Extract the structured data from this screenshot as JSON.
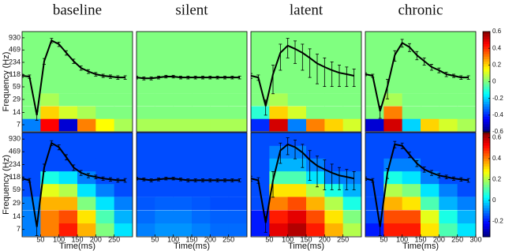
{
  "chart_data": [
    {
      "type": "heatmap",
      "title": "baseline",
      "ylabel": "Frequency (Hz)",
      "ylim": [
        4.7,
        1320
      ],
      "log_y": true,
      "yticks": [
        7,
        14,
        29,
        59,
        118,
        234,
        469,
        930
      ],
      "xlim": [
        0,
        300
      ],
      "x": [
        0,
        20,
        40,
        60,
        80,
        100,
        120,
        140,
        160,
        180,
        200,
        220,
        240,
        260,
        280
      ],
      "values": [
        110,
        105,
        12,
        250,
        800,
        650,
        400,
        250,
        170,
        140,
        120,
        110,
        105,
        100,
        100
      ],
      "errors": [
        10,
        10,
        3,
        40,
        100,
        80,
        50,
        30,
        20,
        15,
        12,
        10,
        10,
        10,
        10
      ],
      "color": "#000000",
      "z_time_bins": [
        0,
        50,
        100,
        150,
        200,
        250,
        300
      ],
      "z_freqs": [
        7,
        14,
        29,
        59,
        118,
        234,
        469,
        930
      ],
      "zlim": [
        -0.6,
        0.6
      ],
      "z": [
        [
          -0.3,
          0.45,
          -0.5,
          0.3,
          0.15,
          0.05
        ],
        [
          0,
          0.2,
          0.1,
          0.05,
          0,
          0
        ],
        [
          0,
          0.05,
          0,
          0,
          0,
          0
        ],
        [
          0,
          0,
          0,
          0,
          0,
          0
        ],
        [
          0,
          0,
          0,
          0,
          0,
          0
        ],
        [
          0,
          0,
          0,
          0,
          0,
          0
        ],
        [
          0,
          0,
          0,
          0,
          0,
          0
        ],
        [
          0,
          0,
          0,
          0,
          0,
          0
        ]
      ]
    },
    {
      "type": "heatmap",
      "title": "silent",
      "ylim": [
        4.7,
        1320
      ],
      "log_y": true,
      "xlim": [
        0,
        300
      ],
      "x": [
        0,
        20,
        40,
        60,
        80,
        100,
        120,
        140,
        160,
        180,
        200,
        220,
        240,
        260,
        280
      ],
      "values": [
        100,
        95,
        95,
        100,
        105,
        105,
        100,
        100,
        100,
        100,
        100,
        100,
        100,
        100,
        100
      ],
      "errors": [
        8,
        8,
        8,
        8,
        8,
        8,
        8,
        8,
        8,
        8,
        8,
        8,
        8,
        8,
        8
      ],
      "color": "#000000",
      "z_time_bins": [
        0,
        50,
        100,
        150,
        200,
        250,
        300
      ],
      "z_freqs": [
        7,
        14,
        29,
        59,
        118,
        234,
        469,
        930
      ],
      "zlim": [
        -0.6,
        0.6
      ],
      "z": [
        [
          0.05,
          0.05,
          0.05,
          0.05,
          0.05,
          0.05
        ],
        [
          0,
          0,
          0,
          0,
          0,
          0
        ],
        [
          0,
          0,
          0,
          0,
          0,
          0
        ],
        [
          0,
          0,
          0,
          0,
          0,
          0
        ],
        [
          0,
          0,
          0,
          0,
          0,
          0
        ],
        [
          0,
          0,
          0,
          0,
          0,
          0
        ],
        [
          0,
          0,
          0,
          0,
          0,
          0
        ],
        [
          0,
          0,
          0,
          0,
          0,
          0
        ]
      ]
    },
    {
      "type": "heatmap",
      "title": "latent",
      "ylim": [
        4.7,
        1320
      ],
      "log_y": true,
      "xlim": [
        0,
        300
      ],
      "x": [
        0,
        20,
        40,
        60,
        80,
        100,
        120,
        140,
        160,
        180,
        200,
        220,
        240,
        260,
        280
      ],
      "values": [
        110,
        100,
        20,
        120,
        400,
        600,
        500,
        400,
        300,
        220,
        180,
        150,
        130,
        120,
        110
      ],
      "errors": [
        15,
        15,
        8,
        80,
        250,
        300,
        280,
        250,
        200,
        150,
        120,
        90,
        70,
        60,
        50
      ],
      "color": "#000000",
      "z_time_bins": [
        0,
        50,
        100,
        150,
        200,
        250,
        300
      ],
      "z_freqs": [
        7,
        14,
        29,
        59,
        118,
        234,
        469,
        930
      ],
      "zlim": [
        -0.6,
        0.6
      ],
      "z": [
        [
          -0.4,
          0.5,
          -0.3,
          0.3,
          0.2,
          0.1
        ],
        [
          -0.1,
          0.2,
          0.1,
          0,
          0,
          0
        ],
        [
          0,
          0.05,
          0,
          0,
          0,
          0
        ],
        [
          0,
          0,
          0,
          0,
          0,
          0
        ],
        [
          0,
          0,
          0,
          0,
          0,
          0
        ],
        [
          0,
          0,
          0,
          0,
          0,
          0
        ],
        [
          0,
          0,
          0,
          0,
          0,
          0
        ],
        [
          0,
          0,
          0,
          0,
          0,
          0
        ]
      ]
    },
    {
      "type": "heatmap",
      "title": "chronic",
      "ylim": [
        4.7,
        1320
      ],
      "log_y": true,
      "xlim": [
        0,
        300
      ],
      "x": [
        0,
        20,
        40,
        60,
        80,
        100,
        120,
        140,
        160,
        180,
        200,
        220,
        240,
        260,
        280
      ],
      "values": [
        120,
        110,
        15,
        60,
        350,
        700,
        550,
        350,
        250,
        180,
        150,
        120,
        110,
        100,
        100
      ],
      "errors": [
        10,
        10,
        5,
        30,
        100,
        150,
        120,
        80,
        50,
        30,
        20,
        15,
        10,
        10,
        10
      ],
      "color": "#000000",
      "z_time_bins": [
        0,
        50,
        100,
        150,
        200,
        250,
        300
      ],
      "z_freqs": [
        7,
        14,
        29,
        59,
        118,
        234,
        469,
        930
      ],
      "zlim": [
        -0.6,
        0.6
      ],
      "zticks": [
        0.6,
        0.4,
        0.2,
        0,
        -0.2,
        -0.4,
        -0.6
      ],
      "z": [
        [
          -0.5,
          0.5,
          -0.2,
          0.2,
          0.1,
          0.05
        ],
        [
          0,
          0.3,
          0,
          0,
          0,
          0
        ],
        [
          0,
          0.05,
          0,
          0,
          0,
          0
        ],
        [
          0,
          0,
          0,
          0,
          0,
          0
        ],
        [
          0,
          0,
          0,
          0,
          0,
          0
        ],
        [
          0,
          0,
          0,
          0,
          0,
          0
        ],
        [
          0,
          0,
          0,
          0,
          0,
          0
        ],
        [
          0,
          0,
          0,
          0,
          0,
          0
        ]
      ]
    },
    {
      "type": "heatmap",
      "ylabel": "Frequency (Hz)",
      "xlabel": "Time(ms)",
      "ylim": [
        4.7,
        1320
      ],
      "log_y": true,
      "yticks": [
        7,
        14,
        29,
        59,
        118,
        234,
        469,
        930
      ],
      "xlim": [
        0,
        300
      ],
      "xticks": [
        50,
        100,
        150,
        200,
        250
      ],
      "x": [
        0,
        20,
        40,
        60,
        80,
        100,
        120,
        140,
        160,
        180,
        200,
        220,
        240,
        260,
        280
      ],
      "values": [
        110,
        100,
        8,
        200,
        750,
        600,
        350,
        200,
        150,
        130,
        120,
        110,
        105,
        100,
        100
      ],
      "errors": [
        10,
        10,
        3,
        40,
        100,
        80,
        50,
        30,
        20,
        15,
        12,
        10,
        10,
        10,
        10
      ],
      "color": "#000000",
      "z_time_bins": [
        0,
        50,
        100,
        150,
        200,
        250,
        300
      ],
      "z_freqs": [
        7,
        14,
        29,
        59,
        118,
        234,
        469,
        930
      ],
      "zlim": [
        -0.35,
        0.65
      ],
      "z": [
        [
          -0.1,
          0.4,
          0.5,
          0.35,
          0.15,
          0
        ],
        [
          -0.1,
          0.4,
          0.45,
          0.3,
          0.1,
          -0.05
        ],
        [
          -0.1,
          0.35,
          0.35,
          0.15,
          0,
          -0.1
        ],
        [
          -0.15,
          0.25,
          0.2,
          0,
          -0.1,
          -0.15
        ],
        [
          -0.15,
          0.05,
          0,
          -0.1,
          -0.15,
          -0.15
        ],
        [
          -0.15,
          -0.15,
          -0.15,
          -0.15,
          -0.15,
          -0.15
        ],
        [
          -0.15,
          -0.15,
          -0.15,
          -0.15,
          -0.15,
          -0.15
        ],
        [
          -0.15,
          -0.15,
          -0.15,
          -0.15,
          -0.15,
          -0.15
        ]
      ]
    },
    {
      "type": "heatmap",
      "xlabel": "Time(ms)",
      "ylim": [
        4.7,
        1320
      ],
      "log_y": true,
      "xlim": [
        0,
        300
      ],
      "xticks": [
        50,
        100,
        150,
        200,
        250
      ],
      "x": [
        0,
        20,
        40,
        60,
        80,
        100,
        120,
        140,
        160,
        180,
        200,
        220,
        240,
        260,
        280
      ],
      "values": [
        110,
        105,
        100,
        105,
        110,
        110,
        105,
        100,
        100,
        100,
        100,
        100,
        100,
        100,
        100
      ],
      "errors": [
        8,
        8,
        8,
        8,
        8,
        8,
        8,
        8,
        8,
        8,
        8,
        8,
        8,
        8,
        8
      ],
      "color": "#000000",
      "z_time_bins": [
        0,
        50,
        100,
        150,
        200,
        250,
        300
      ],
      "z_freqs": [
        7,
        14,
        29,
        59,
        118,
        234,
        469,
        930
      ],
      "zlim": [
        -0.35,
        0.65
      ],
      "z": [
        [
          -0.1,
          -0.08,
          -0.08,
          -0.1,
          -0.12,
          -0.12
        ],
        [
          -0.12,
          -0.1,
          -0.1,
          -0.12,
          -0.13,
          -0.13
        ],
        [
          -0.14,
          -0.13,
          -0.13,
          -0.14,
          -0.15,
          -0.15
        ],
        [
          -0.15,
          -0.15,
          -0.15,
          -0.15,
          -0.15,
          -0.15
        ],
        [
          -0.15,
          -0.15,
          -0.15,
          -0.15,
          -0.15,
          -0.15
        ],
        [
          -0.15,
          -0.15,
          -0.15,
          -0.15,
          -0.15,
          -0.15
        ],
        [
          -0.15,
          -0.15,
          -0.15,
          -0.15,
          -0.15,
          -0.15
        ],
        [
          -0.15,
          -0.15,
          -0.15,
          -0.15,
          -0.15,
          -0.15
        ]
      ]
    },
    {
      "type": "heatmap",
      "xlabel": "Time(ms)",
      "ylim": [
        4.7,
        1320
      ],
      "log_y": true,
      "xlim": [
        0,
        300
      ],
      "xticks": [
        50,
        100,
        150,
        200,
        250
      ],
      "x": [
        0,
        20,
        40,
        60,
        80,
        100,
        120,
        140,
        160,
        180,
        200,
        220,
        240,
        260,
        280
      ],
      "values": [
        110,
        100,
        10,
        100,
        500,
        700,
        600,
        450,
        300,
        220,
        180,
        150,
        130,
        120,
        110
      ],
      "errors": [
        15,
        15,
        4,
        60,
        250,
        300,
        280,
        250,
        200,
        150,
        120,
        90,
        70,
        60,
        50
      ],
      "color": "#000000",
      "z_time_bins": [
        0,
        50,
        100,
        150,
        200,
        250,
        300
      ],
      "z_freqs": [
        7,
        14,
        29,
        59,
        118,
        234,
        469,
        930
      ],
      "zlim": [
        -0.35,
        0.65
      ],
      "z": [
        [
          -0.2,
          0.55,
          0.6,
          0.5,
          0.35,
          0.2
        ],
        [
          -0.2,
          0.5,
          0.55,
          0.45,
          0.3,
          0.15
        ],
        [
          -0.15,
          0.4,
          0.45,
          0.35,
          0.2,
          0.05
        ],
        [
          -0.15,
          0.3,
          0.3,
          0.2,
          0.05,
          -0.05
        ],
        [
          -0.15,
          0.1,
          0.1,
          0,
          -0.1,
          -0.1
        ],
        [
          -0.15,
          -0.05,
          -0.05,
          -0.1,
          -0.15,
          -0.15
        ],
        [
          -0.15,
          -0.1,
          -0.1,
          -0.15,
          -0.15,
          -0.15
        ],
        [
          -0.15,
          -0.15,
          -0.15,
          -0.15,
          -0.15,
          -0.15
        ]
      ]
    },
    {
      "type": "heatmap",
      "xlabel": "Time(ms)",
      "ylim": [
        4.7,
        1320
      ],
      "log_y": true,
      "xlim": [
        0,
        300
      ],
      "xticks": [
        50,
        100,
        150,
        200,
        250,
        300
      ],
      "x": [
        0,
        20,
        40,
        60,
        80,
        100,
        120,
        140,
        160,
        180,
        200,
        220,
        240,
        260,
        280
      ],
      "values": [
        110,
        100,
        8,
        150,
        700,
        650,
        400,
        250,
        180,
        150,
        130,
        120,
        110,
        105,
        100
      ],
      "errors": [
        10,
        10,
        3,
        40,
        120,
        100,
        60,
        40,
        25,
        20,
        15,
        12,
        10,
        10,
        10
      ],
      "color": "#000000",
      "z_time_bins": [
        0,
        50,
        100,
        150,
        200,
        250,
        300
      ],
      "z_freqs": [
        7,
        14,
        29,
        59,
        118,
        234,
        469,
        930
      ],
      "zlim": [
        -0.35,
        0.65
      ],
      "zticks": [
        0.6,
        0.4,
        0.2,
        0,
        -0.2
      ],
      "z": [
        [
          -0.2,
          0.5,
          0.5,
          0.3,
          0.1,
          0
        ],
        [
          -0.15,
          0.45,
          0.45,
          0.25,
          0.05,
          -0.05
        ],
        [
          -0.15,
          0.35,
          0.3,
          0.1,
          -0.05,
          -0.1
        ],
        [
          -0.15,
          0.2,
          0.15,
          0,
          -0.1,
          -0.15
        ],
        [
          -0.15,
          0.05,
          0,
          -0.1,
          -0.15,
          -0.15
        ],
        [
          -0.15,
          -0.1,
          -0.1,
          -0.15,
          -0.15,
          -0.15
        ],
        [
          -0.15,
          -0.15,
          -0.15,
          -0.15,
          -0.15,
          -0.15
        ],
        [
          -0.15,
          -0.15,
          -0.15,
          -0.15,
          -0.15,
          -0.15
        ]
      ]
    }
  ]
}
